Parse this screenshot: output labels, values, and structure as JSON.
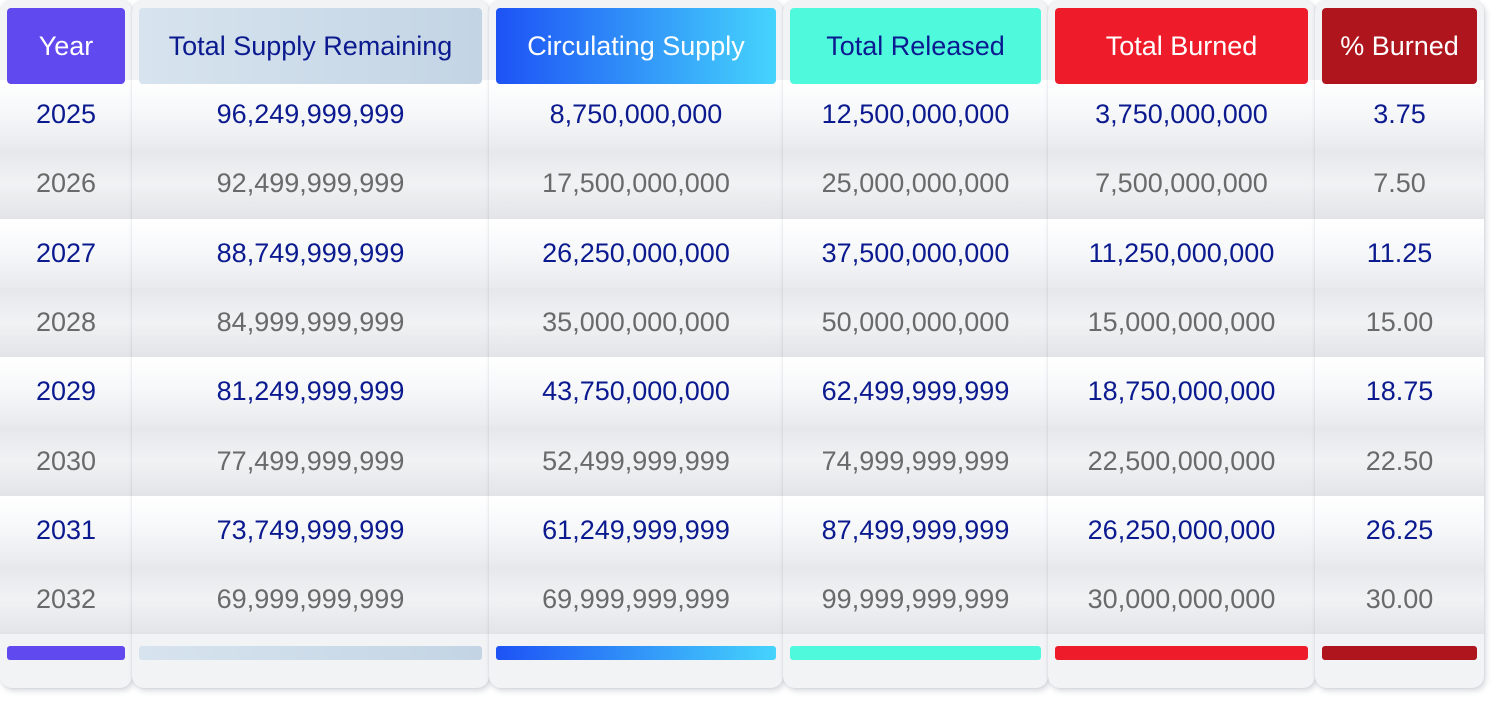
{
  "columns": [
    {
      "header": "Year",
      "header_bg": "#6049ef",
      "header_text_color": "#ffffff",
      "values": [
        "2025",
        "2026",
        "2027",
        "2028",
        "2029",
        "2030",
        "2031",
        "2032"
      ]
    },
    {
      "header": "Total Supply Remaining",
      "header_bg": "linear-gradient(90deg, #d7e4ef, #c3d4e4)",
      "header_text_color": "#0b1a8f",
      "values": [
        "96,249,999,999",
        "92,499,999,999",
        "88,749,999,999",
        "84,999,999,999",
        "81,249,999,999",
        "77,499,999,999",
        "73,749,999,999",
        "69,999,999,999"
      ]
    },
    {
      "header": "Circulating Supply",
      "header_bg": "linear-gradient(90deg, #1d52f5, #45d4fc)",
      "header_text_color": "#ffffff",
      "values": [
        "8,750,000,000",
        "17,500,000,000",
        "26,250,000,000",
        "35,000,000,000",
        "43,750,000,000",
        "52,499,999,999",
        "61,249,999,999",
        "69,999,999,999"
      ]
    },
    {
      "header": "Total Released",
      "header_bg": "#4ff9dc",
      "header_text_color": "#0b1a8f",
      "values": [
        "12,500,000,000",
        "25,000,000,000",
        "37,500,000,000",
        "50,000,000,000",
        "62,499,999,999",
        "74,999,999,999",
        "87,499,999,999",
        "99,999,999,999"
      ]
    },
    {
      "header": "Total Burned",
      "header_bg": "#ee1c2a",
      "header_text_color": "#ffffff",
      "values": [
        "3,750,000,000",
        "7,500,000,000",
        "11,250,000,000",
        "15,000,000,000",
        "18,750,000,000",
        "22,500,000,000",
        "26,250,000,000",
        "30,000,000,000"
      ]
    },
    {
      "header": "% Burned",
      "header_bg": "#ae151d",
      "header_text_color": "#ffffff",
      "values": [
        "3.75",
        "7.50",
        "11.25",
        "15.00",
        "18.75",
        "22.50",
        "26.25",
        "30.00"
      ]
    }
  ]
}
